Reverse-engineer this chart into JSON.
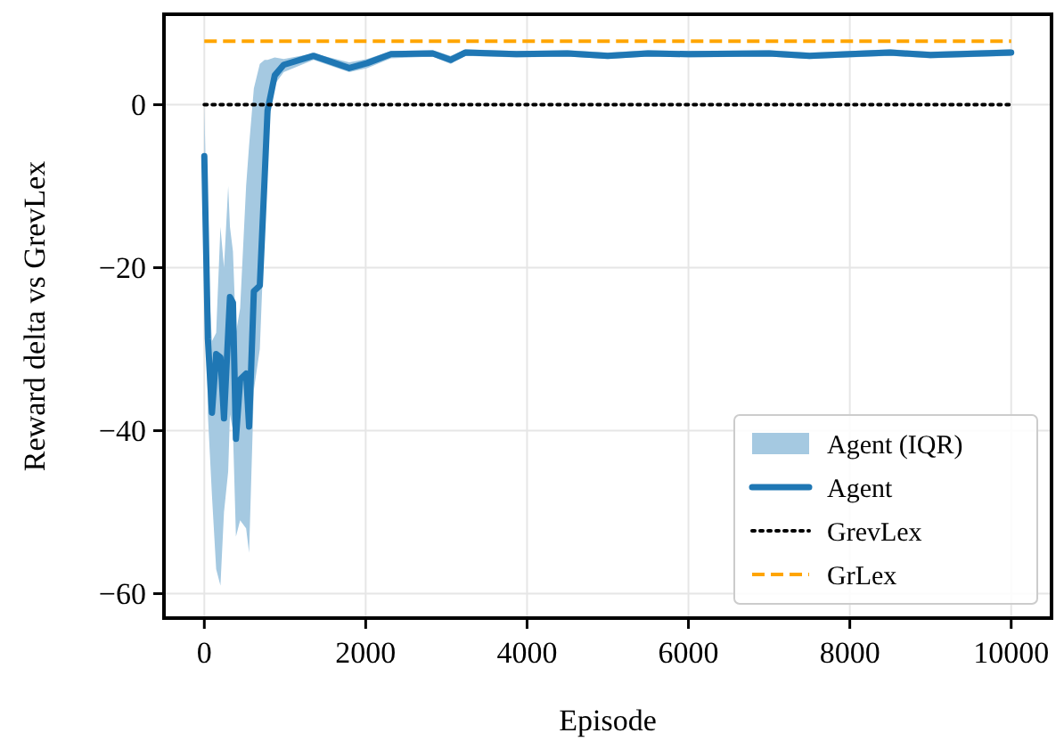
{
  "chart_data": {
    "type": "line",
    "xlabel": "Episode",
    "ylabel": "Reward delta vs GrevLex",
    "xlim": [
      -500,
      10500
    ],
    "ylim": [
      -63,
      11.1
    ],
    "xticks": [
      0,
      2000,
      4000,
      6000,
      8000,
      10000
    ],
    "yticks": [
      -60,
      -40,
      -20,
      0
    ],
    "grid": true,
    "legend": "bottom right",
    "annotations": [
      "Agent (IQR)"
    ],
    "series": [
      {
        "name": "Agent",
        "color": "#1f77b4",
        "line_style": "solid",
        "x": [
          0,
          44,
          95,
          147,
          200,
          244,
          296,
          318,
          355,
          392,
          444,
          518,
          555,
          614,
          688,
          747,
          784,
          873,
          984,
          1353,
          1796,
          2018,
          2314,
          2831,
          3053,
          3237,
          3866,
          4500,
          5000,
          5500,
          6000,
          7000,
          7500,
          8000,
          8500,
          9000,
          10000
        ],
        "values": [
          -6.3,
          -28.7,
          -37.8,
          -30.6,
          -31,
          -38.5,
          -28,
          -23.6,
          -24.3,
          -41,
          -33.7,
          -33,
          -39.5,
          -22.9,
          -22.2,
          -9.1,
          -0.7,
          3.6,
          4.9,
          6,
          4.5,
          5.1,
          6.2,
          6.3,
          5.5,
          6.4,
          6.2,
          6.3,
          6,
          6.3,
          6.2,
          6.3,
          6,
          6.2,
          6.4,
          6.1,
          6.4
        ],
        "lower": [
          -10,
          -38,
          -48,
          -57,
          -59,
          -50,
          -45,
          -38,
          -40,
          -53,
          -51,
          -52,
          -55,
          -35,
          -30,
          -15,
          -3,
          2.5,
          4,
          5.5,
          4,
          4.5,
          5.7,
          5.9,
          5,
          6,
          5.8,
          5.9,
          5.6,
          5.9,
          5.8,
          5.9,
          5.6,
          5.8,
          6,
          5.7,
          6
        ],
        "upper": [
          0,
          -20,
          -29,
          -28,
          -15,
          -20,
          -10,
          -15,
          -18,
          -28,
          -25,
          -10,
          -5,
          2,
          5,
          5.5,
          5.5,
          5.8,
          5.6,
          6.3,
          5.2,
          5.6,
          6.6,
          6.7,
          6,
          6.8,
          6.6,
          6.7,
          6.4,
          6.7,
          6.6,
          6.7,
          6.4,
          6.6,
          6.8,
          6.5,
          6.8
        ]
      },
      {
        "name": "GrevLex",
        "color": "#000000",
        "line_style": "dotted",
        "x": [
          0,
          10000
        ],
        "values": [
          0,
          0
        ]
      },
      {
        "name": "GrLex",
        "color": "#ffa500",
        "line_style": "dashed",
        "x": [
          0,
          10000
        ],
        "values": [
          7.8,
          7.8
        ]
      }
    ]
  }
}
